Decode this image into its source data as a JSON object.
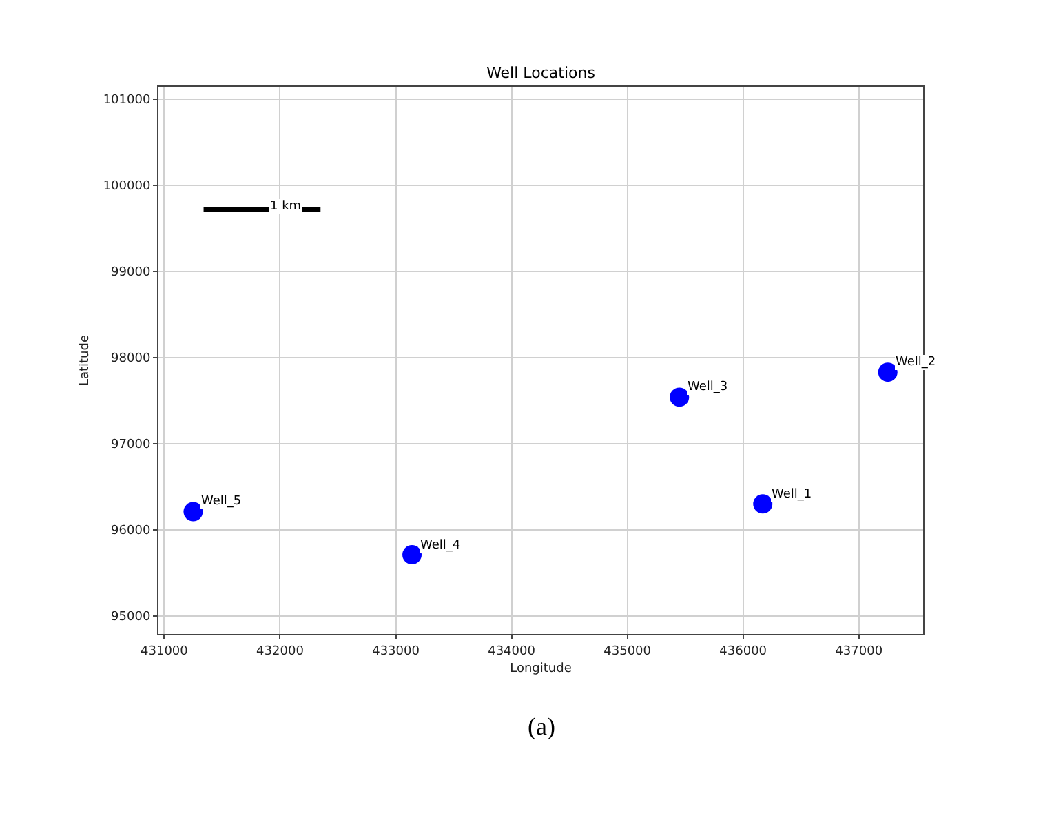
{
  "chart_data": {
    "type": "scatter",
    "title": "Well Locations",
    "xlabel": "Longitude",
    "ylabel": "Latitude",
    "xlim": [
      430950,
      437555
    ],
    "xticks": [
      431000,
      432000,
      433000,
      434000,
      435000,
      436000,
      437000
    ],
    "ylim": [
      94790,
      101145
    ],
    "yticks": [
      95000,
      96000,
      97000,
      98000,
      99000,
      100000,
      101000
    ],
    "grid": true,
    "marker": "circle",
    "series": [
      {
        "color": "#0000ff",
        "x": [
          436170,
          437250,
          435450,
          433140,
          431250
        ],
        "values": [
          96300,
          97830,
          97540,
          95710,
          96210
        ]
      },
      {
        "type": "line",
        "color": "#000000",
        "marker": "none",
        "x": [
          431340,
          432350
        ],
        "values": [
          99720,
          99720
        ]
      }
    ],
    "annotations": [
      {
        "text": "Well_1",
        "x": 436170,
        "y": 96300
      },
      {
        "text": "Well_2",
        "x": 437250,
        "y": 97830
      },
      {
        "text": "Well_3",
        "x": 435450,
        "y": 97540
      },
      {
        "text": "Well_4",
        "x": 433140,
        "y": 95710
      },
      {
        "text": "Well_5",
        "x": 431250,
        "y": 96210
      },
      {
        "text": "1 km",
        "x": 431845,
        "y": 99640
      },
      "(a)"
    ]
  }
}
